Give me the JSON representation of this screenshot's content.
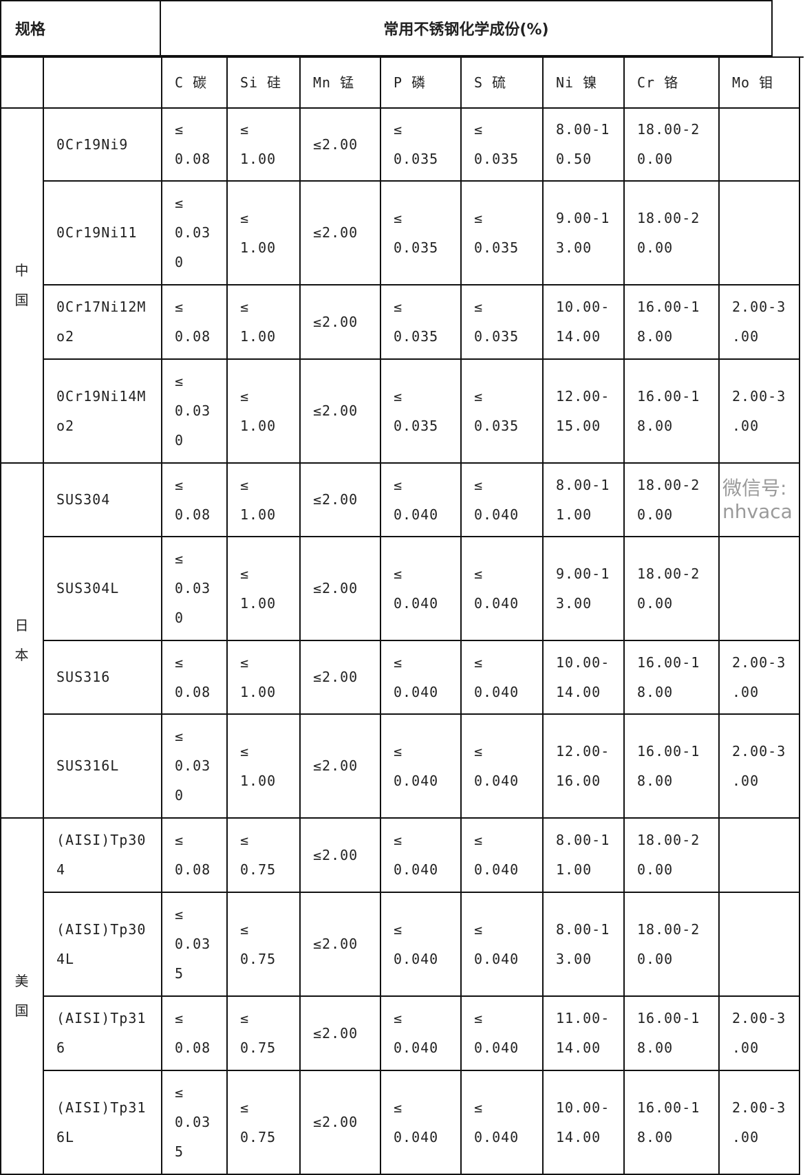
{
  "title": {
    "spec": "规格",
    "composition": "常用不锈钢化学成份(%)"
  },
  "columns": [
    "C 碳",
    "Si 硅",
    "Mn 锰",
    "P 磷",
    "S 硫",
    "Ni 镍",
    "Cr  铬",
    "Mo 钼"
  ],
  "regions": [
    {
      "name": "中\n国",
      "rows": [
        0,
        1,
        2,
        3
      ]
    },
    {
      "name": "日\n本",
      "rows": [
        4,
        5,
        6,
        7
      ]
    },
    {
      "name": "美\n国",
      "rows": [
        8,
        9,
        10,
        11
      ]
    }
  ],
  "rows": [
    {
      "grade": "0Cr19Ni9",
      "v": [
        "≤\n0.08",
        "≤\n1.00",
        "≤2.00",
        "≤\n0.035",
        "≤\n0.035",
        "8.00-1\n0.50",
        "18.00-2\n0.00",
        ""
      ]
    },
    {
      "grade": "0Cr19Ni11",
      "v": [
        "≤\n0.03\n0",
        "≤\n1.00",
        "≤2.00",
        "≤\n0.035",
        "≤\n0.035",
        "9.00-1\n3.00",
        "18.00-2\n0.00",
        ""
      ]
    },
    {
      "grade": "0Cr17Ni12M\no2",
      "v": [
        "≤\n0.08",
        "≤\n1.00",
        "≤2.00",
        "≤\n0.035",
        "≤\n0.035",
        "10.00-\n14.00",
        "16.00-1\n8.00",
        "2.00-3\n.00"
      ]
    },
    {
      "grade": "0Cr19Ni14M\no2",
      "v": [
        "≤\n0.03\n0",
        "≤\n1.00",
        "≤2.00",
        "≤\n0.035",
        "≤\n0.035",
        "12.00-\n15.00",
        "16.00-1\n8.00",
        "2.00-3\n.00"
      ]
    },
    {
      "grade": "SUS304",
      "v": [
        "≤\n0.08",
        "≤\n1.00",
        "≤2.00",
        "≤\n0.040",
        "≤\n0.040",
        "8.00-1\n1.00",
        "18.00-2\n0.00",
        ""
      ]
    },
    {
      "grade": "SUS304L",
      "v": [
        "≤\n0.03\n0",
        "≤\n1.00",
        "≤2.00",
        "≤\n0.040",
        "≤\n0.040",
        "9.00-1\n3.00",
        "18.00-2\n0.00",
        ""
      ]
    },
    {
      "grade": "SUS316",
      "v": [
        "≤\n0.08",
        "≤\n1.00",
        "≤2.00",
        "≤\n0.040",
        "≤\n0.040",
        "10.00-\n14.00",
        "16.00-1\n8.00",
        "2.00-3\n.00"
      ]
    },
    {
      "grade": "SUS316L",
      "v": [
        "≤\n0.03\n0",
        "≤\n1.00",
        "≤2.00",
        "≤\n0.040",
        "≤\n0.040",
        "12.00-\n16.00",
        "16.00-1\n8.00",
        "2.00-3\n.00"
      ]
    },
    {
      "grade": "(AISI)Tp30\n4",
      "v": [
        "≤\n0.08",
        "≤\n0.75",
        "≤2.00",
        "≤\n0.040",
        "≤\n0.040",
        "8.00-1\n1.00",
        "18.00-2\n0.00",
        ""
      ]
    },
    {
      "grade": "(AISI)Tp30\n4L",
      "v": [
        "≤\n0.03\n5",
        "≤\n0.75",
        "≤2.00",
        "≤\n0.040",
        "≤\n0.040",
        "8.00-1\n3.00",
        "18.00-2\n0.00",
        ""
      ]
    },
    {
      "grade": "(AISI)Tp31\n6",
      "v": [
        "≤\n0.08",
        "≤\n0.75",
        "≤2.00",
        "≤\n0.040",
        "≤\n0.040",
        "11.00-\n14.00",
        "16.00-1\n8.00",
        "2.00-3\n.00"
      ]
    },
    {
      "grade": "(AISI)Tp31\n6L",
      "v": [
        "≤\n0.03\n5",
        "≤\n0.75",
        "≤2.00",
        "≤\n0.040",
        "≤\n0.040",
        "10.00-\n14.00",
        "16.00-1\n8.00",
        "2.00-3\n.00"
      ]
    }
  ],
  "watermark": "微信号: nhvaca"
}
